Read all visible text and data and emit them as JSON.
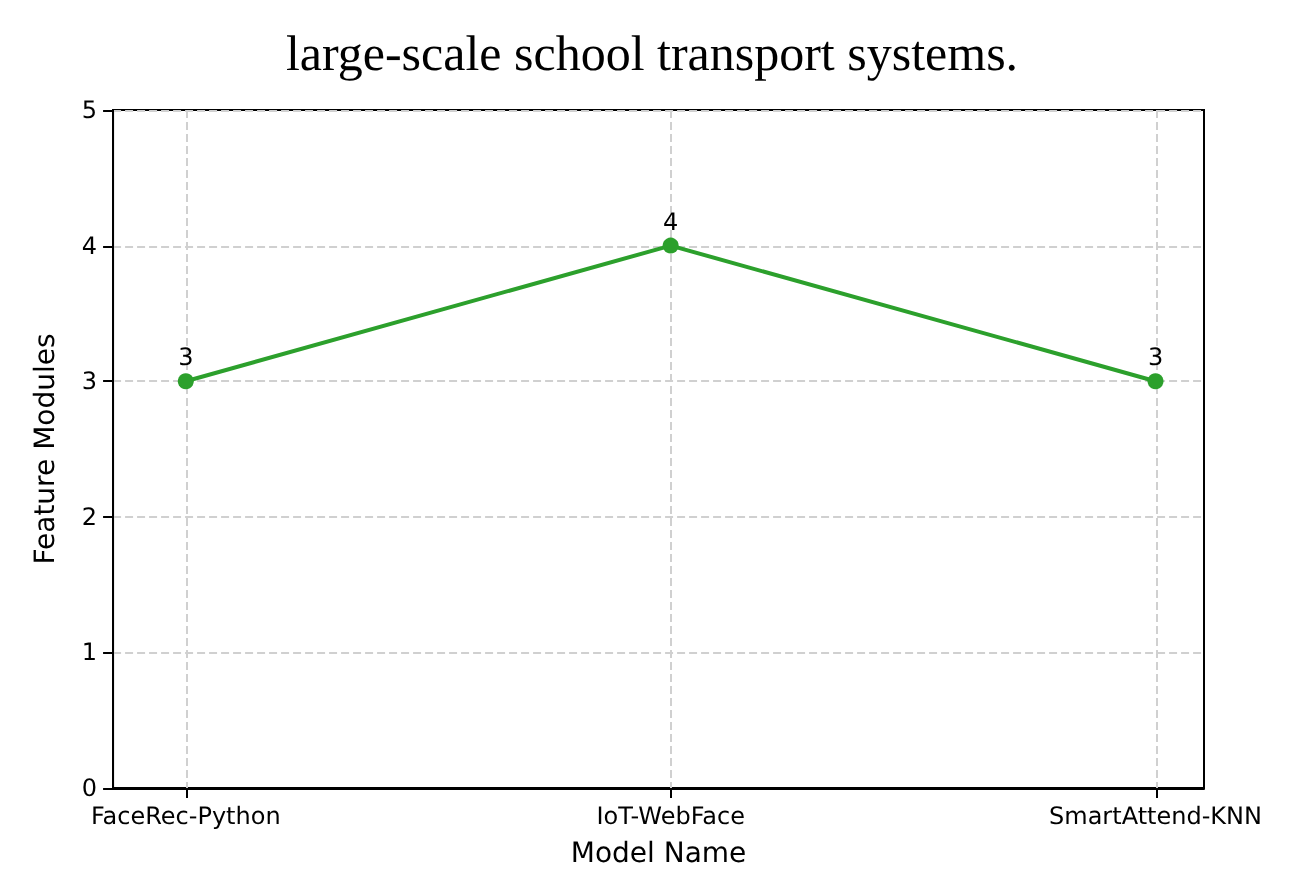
{
  "chart_data": {
    "type": "line",
    "title": "large-scale school transport systems.",
    "xlabel": "Model Name",
    "ylabel": "Feature Modules",
    "categories": [
      "FaceRec-Python",
      "IoT-WebFace",
      "SmartAttend-KNN"
    ],
    "series": [
      {
        "color": "#2ca02c",
        "values": [
          3,
          4,
          3
        ]
      }
    ],
    "ylim": [
      0,
      5
    ],
    "yticks": [
      0,
      1,
      2,
      3,
      4,
      5
    ],
    "grid": true,
    "marker": "circle",
    "line_style": "solid",
    "data_labels": true
  }
}
